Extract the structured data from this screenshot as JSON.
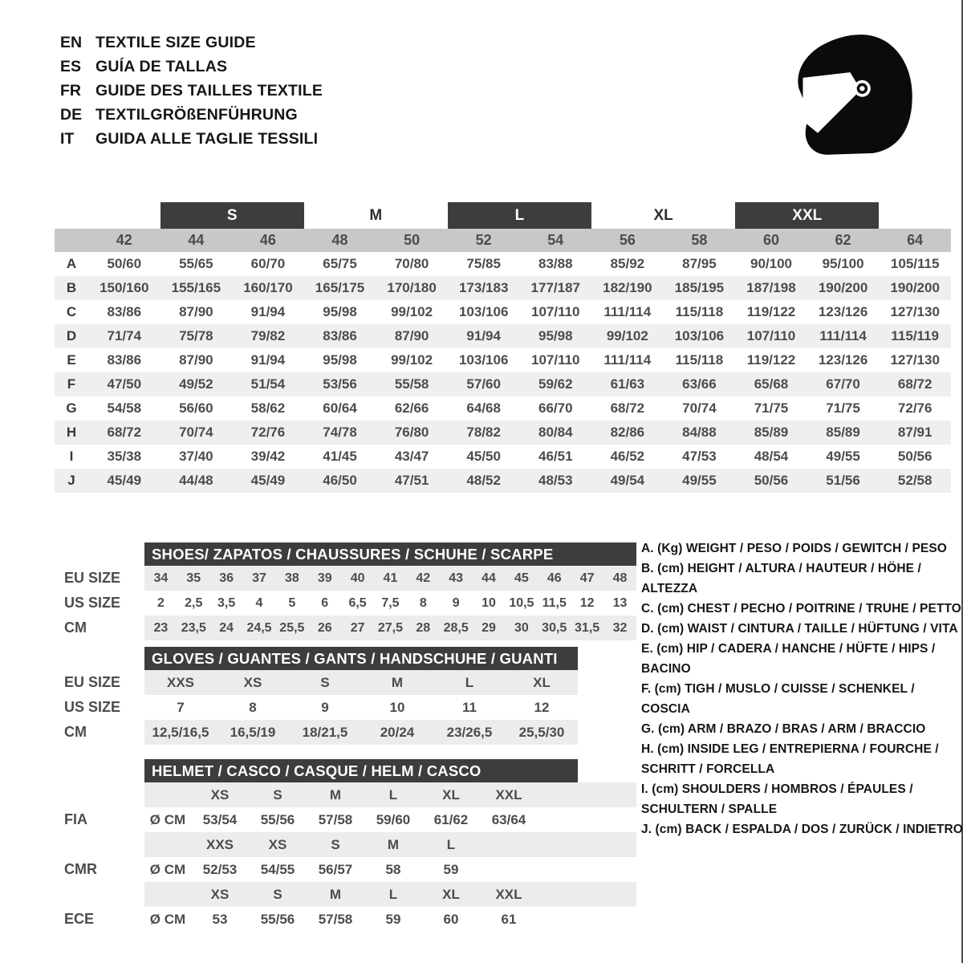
{
  "languages": [
    {
      "code": "EN",
      "label": "TEXTILE SIZE GUIDE"
    },
    {
      "code": "ES",
      "label": "GUÍA DE TALLAS"
    },
    {
      "code": "FR",
      "label": "GUIDE DES TAILLES TEXTILE"
    },
    {
      "code": "DE",
      "label": "TEXTILGRÖßENFÜHRUNG"
    },
    {
      "code": "IT",
      "label": "GUIDA ALLE TAGLIE TESSILI"
    }
  ],
  "helmet_icon": "full-face-racing-helmet",
  "colors": {
    "dark_bar": "#3d3d3d",
    "header_band": "#c8c8c8",
    "alt_band": "#ececec",
    "text": "#4c4c4c"
  },
  "main_table": {
    "size_groups": [
      {
        "label": "S",
        "dark": true
      },
      {
        "label": "M",
        "dark": false
      },
      {
        "label": "L",
        "dark": true
      },
      {
        "label": "XL",
        "dark": false
      },
      {
        "label": "XXL",
        "dark": true
      }
    ],
    "columns": [
      "42",
      "44",
      "46",
      "48",
      "50",
      "52",
      "54",
      "56",
      "58",
      "60",
      "62",
      "64"
    ],
    "rows": [
      {
        "label": "A",
        "values": [
          "50/60",
          "55/65",
          "60/70",
          "65/75",
          "70/80",
          "75/85",
          "83/88",
          "85/92",
          "87/95",
          "90/100",
          "95/100",
          "105/115"
        ]
      },
      {
        "label": "B",
        "values": [
          "150/160",
          "155/165",
          "160/170",
          "165/175",
          "170/180",
          "173/183",
          "177/187",
          "182/190",
          "185/195",
          "187/198",
          "190/200",
          "190/200"
        ]
      },
      {
        "label": "C",
        "values": [
          "83/86",
          "87/90",
          "91/94",
          "95/98",
          "99/102",
          "103/106",
          "107/110",
          "111/114",
          "115/118",
          "119/122",
          "123/126",
          "127/130"
        ]
      },
      {
        "label": "D",
        "values": [
          "71/74",
          "75/78",
          "79/82",
          "83/86",
          "87/90",
          "91/94",
          "95/98",
          "99/102",
          "103/106",
          "107/110",
          "111/114",
          "115/119"
        ]
      },
      {
        "label": "E",
        "values": [
          "83/86",
          "87/90",
          "91/94",
          "95/98",
          "99/102",
          "103/106",
          "107/110",
          "111/114",
          "115/118",
          "119/122",
          "123/126",
          "127/130"
        ]
      },
      {
        "label": "F",
        "values": [
          "47/50",
          "49/52",
          "51/54",
          "53/56",
          "55/58",
          "57/60",
          "59/62",
          "61/63",
          "63/66",
          "65/68",
          "67/70",
          "68/72"
        ]
      },
      {
        "label": "G",
        "values": [
          "54/58",
          "56/60",
          "58/62",
          "60/64",
          "62/66",
          "64/68",
          "66/70",
          "68/72",
          "70/74",
          "71/75",
          "71/75",
          "72/76"
        ]
      },
      {
        "label": "H",
        "values": [
          "68/72",
          "70/74",
          "72/76",
          "74/78",
          "76/80",
          "78/82",
          "80/84",
          "82/86",
          "84/88",
          "85/89",
          "85/89",
          "87/91"
        ]
      },
      {
        "label": "I",
        "values": [
          "35/38",
          "37/40",
          "39/42",
          "41/45",
          "43/47",
          "45/50",
          "46/51",
          "46/52",
          "47/53",
          "48/54",
          "49/55",
          "50/56"
        ]
      },
      {
        "label": "J",
        "values": [
          "45/49",
          "44/48",
          "45/49",
          "46/50",
          "47/51",
          "48/52",
          "48/53",
          "49/54",
          "49/55",
          "50/56",
          "51/56",
          "52/58"
        ]
      }
    ]
  },
  "shoes": {
    "title": "SHOES/ ZAPATOS / CHAUSSURES / SCHUHE / SCARPE",
    "row_labels": [
      "EU SIZE",
      "US SIZE",
      "CM"
    ],
    "eu": [
      "34",
      "35",
      "36",
      "37",
      "38",
      "39",
      "40",
      "41",
      "42",
      "43",
      "44",
      "45",
      "46",
      "47",
      "48"
    ],
    "us": [
      "2",
      "2,5",
      "3,5",
      "4",
      "5",
      "6",
      "6,5",
      "7,5",
      "8",
      "9",
      "10",
      "10,5",
      "11,5",
      "12",
      "13"
    ],
    "cm": [
      "23",
      "23,5",
      "24",
      "24,5",
      "25,5",
      "26",
      "27",
      "27,5",
      "28",
      "28,5",
      "29",
      "30",
      "30,5",
      "31,5",
      "32"
    ]
  },
  "gloves": {
    "title": "GLOVES / GUANTES / GANTS / HANDSCHUHE / GUANTI",
    "row_labels": [
      "EU SIZE",
      "US SIZE",
      "CM"
    ],
    "eu": [
      "XXS",
      "XS",
      "S",
      "M",
      "L",
      "XL"
    ],
    "us": [
      "7",
      "8",
      "9",
      "10",
      "11",
      "12"
    ],
    "cm": [
      "12,5/16,5",
      "16,5/19",
      "18/21,5",
      "20/24",
      "23/26,5",
      "25,5/30"
    ]
  },
  "helmet": {
    "title": "HELMET / CASCO / CASQUE / HELM / CASCO",
    "unit_label": "Ø CM",
    "standards": [
      {
        "name": "FIA",
        "sizes": [
          "XS",
          "S",
          "M",
          "L",
          "XL",
          "XXL"
        ],
        "values": [
          "53/54",
          "55/56",
          "57/58",
          "59/60",
          "61/62",
          "63/64"
        ]
      },
      {
        "name": "CMR",
        "sizes": [
          "XXS",
          "XS",
          "S",
          "M",
          "L",
          ""
        ],
        "values": [
          "52/53",
          "54/55",
          "56/57",
          "58",
          "59",
          ""
        ]
      },
      {
        "name": "ECE",
        "sizes": [
          "XS",
          "S",
          "M",
          "L",
          "XL",
          "XXL"
        ],
        "values": [
          "53",
          "55/56",
          "57/58",
          "59",
          "60",
          "61"
        ]
      }
    ]
  },
  "legend": {
    "items": [
      "A. (Kg) WEIGHT / PESO / POIDS / GEWITCH / PESO",
      "B. (cm) HEIGHT / ALTURA / HAUTEUR / HÖHE / ALTEZZA",
      "C. (cm) CHEST / PECHO / POITRINE / TRUHE / PETTO",
      "D. (cm) WAIST / CINTURA / TAILLE / HÜFTUNG / VITA",
      "E. (cm) HIP / CADERA / HANCHE / HÜFTE / HIPS /  BACINO",
      "F. (cm) TIGH / MUSLO / CUISSE / SCHENKEL / COSCIA",
      "G. (cm) ARM  / BRAZO / BRAS / ARM / BRACCIO",
      "H. (cm) INSIDE LEG / ENTREPIERNA / FOURCHE / SCHRITT / FORCELLA",
      "I.  (cm) SHOULDERS / HOMBROS / ÉPAULES / SCHULTERN / SPALLE",
      "J. (cm) BACK / ESPALDA / DOS / ZURÜCK / INDIETRO"
    ]
  }
}
